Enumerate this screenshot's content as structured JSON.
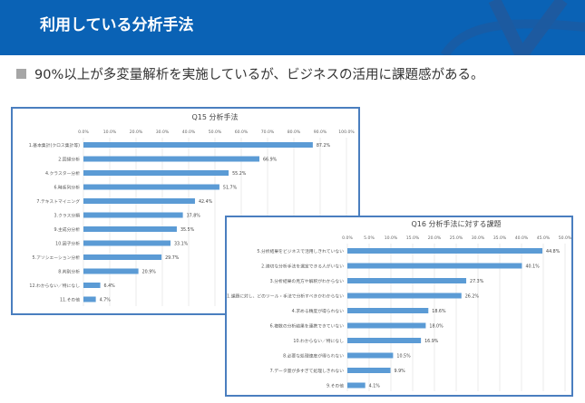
{
  "header": {
    "title": "利用している分析手法"
  },
  "bullet": {
    "text": "90%以上が多変量解析を実施しているが、ビジネスの活用に課題感がある。"
  },
  "colors": {
    "header": "#0a62b5",
    "bar": "#5b9bd5",
    "border": "#4a7ebf"
  },
  "chart_data": [
    {
      "type": "bar",
      "orientation": "horizontal",
      "title": "Q15 分析手法",
      "xlim": [
        0,
        100
      ],
      "grid": true,
      "ticks": [
        "0.0%",
        "10.0%",
        "20.0%",
        "30.0%",
        "40.0%",
        "50.0%",
        "60.0%",
        "70.0%",
        "80.0%",
        "90.0%",
        "100.0%"
      ],
      "categories": [
        "1.基本集計(クロス集計等)",
        "2.回帰分析",
        "4.クラスター分析",
        "6.時系列分析",
        "7.テキストマイニング",
        "3.クラス分類",
        "9.主成分分析",
        "10.因子分析",
        "5.アソシエーション分析",
        "8.判別分析",
        "12.わからない／特になし",
        "11.その他"
      ],
      "values": [
        87.2,
        66.9,
        55.2,
        51.7,
        42.4,
        37.8,
        35.5,
        33.1,
        29.7,
        20.9,
        6.4,
        4.7
      ]
    },
    {
      "type": "bar",
      "orientation": "horizontal",
      "title": "Q16 分析手法に対する課題",
      "xlim": [
        0,
        50
      ],
      "grid": true,
      "ticks": [
        "0.0%",
        "5.0%",
        "10.0%",
        "15.0%",
        "20.0%",
        "25.0%",
        "30.0%",
        "35.0%",
        "40.0%",
        "45.0%",
        "50.0%"
      ],
      "categories": [
        "5.分析結果をビジネスで活用しきれていない",
        "2.適切な分析手法を選定できる人がいない",
        "3.分析結果の見方や解釈がわからない",
        "1.課題に対し、どのツール・手法で分析すべきかわからない",
        "4.求める精度が得られない",
        "6.複数の分析結果を連携できていない",
        "10.わからない／特になし",
        "8.必要な処理速度が得られない",
        "7.データ量が多すぎて処理しきれない",
        "9.その他"
      ],
      "values": [
        44.8,
        40.1,
        27.3,
        26.2,
        18.6,
        18.0,
        16.9,
        10.5,
        9.9,
        4.1
      ]
    }
  ]
}
